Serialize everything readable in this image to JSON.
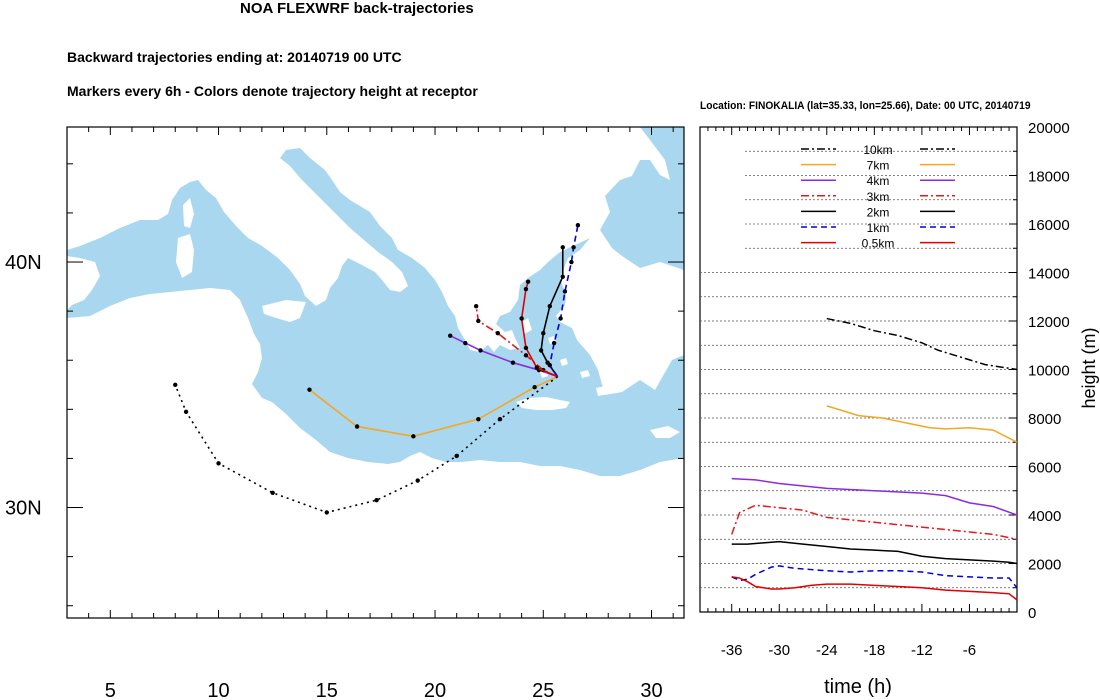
{
  "title": "NOA FLEXWRF back-trajectories",
  "subtitle_1": "Backward trajectories ending at: 20140719  00 UTC",
  "subtitle_2": "Markers every 6h - Colors denote trajectory height at receptor",
  "colors": {
    "sea": "#a9d7f0",
    "land": "#ffffff",
    "h10km": "#000000",
    "h7km": "#f5a623",
    "h4km": "#8a2be2",
    "h3km": "#e41a1c",
    "h2km": "#000000",
    "h1km": "#0000e0",
    "h05km": "#e00000"
  },
  "chart_data": [
    {
      "type": "line",
      "title": "",
      "xlabel": "",
      "ylabel": "",
      "xlim": [
        3,
        31.5
      ],
      "ylim": [
        25.5,
        45.5
      ],
      "x_ticks": [
        5,
        10,
        15,
        20,
        25,
        30
      ],
      "y_ticks": [
        {
          "value": 30,
          "label": "30N"
        },
        {
          "value": 40,
          "label": "40N"
        }
      ],
      "receptor": {
        "lon": 25.66,
        "lat": 35.33
      },
      "series": [
        {
          "key": "h10km",
          "style": "dashdot",
          "markers": [],
          "points": []
        },
        {
          "key": "h7km",
          "style": "solid",
          "points": [
            [
              25.66,
              35.33
            ],
            [
              24.6,
              34.9
            ],
            [
              22.0,
              33.6
            ],
            [
              19.0,
              32.9
            ],
            [
              16.4,
              33.3
            ],
            [
              14.2,
              34.8
            ]
          ]
        },
        {
          "key": "h4km",
          "style": "solid",
          "points": [
            [
              25.66,
              35.33
            ],
            [
              24.8,
              35.6
            ],
            [
              23.6,
              35.9
            ],
            [
              22.1,
              36.4
            ],
            [
              21.4,
              36.7
            ],
            [
              20.7,
              37.0
            ]
          ]
        },
        {
          "key": "h3km",
          "style": "dashdot",
          "points": [
            [
              25.66,
              35.33
            ],
            [
              25.0,
              35.6
            ],
            [
              24.2,
              36.2
            ],
            [
              22.9,
              37.1
            ],
            [
              22.0,
              37.6
            ],
            [
              21.9,
              38.2
            ]
          ]
        },
        {
          "key": "h2km",
          "style": "solid",
          "points": [
            [
              25.66,
              35.33
            ],
            [
              25.2,
              35.9
            ],
            [
              24.9,
              36.4
            ],
            [
              25.0,
              37.1
            ],
            [
              25.3,
              38.2
            ],
            [
              25.9,
              39.4
            ],
            [
              25.9,
              40.6
            ]
          ]
        },
        {
          "key": "h1km",
          "style": "dashed",
          "points": [
            [
              25.66,
              35.33
            ],
            [
              25.3,
              35.8
            ],
            [
              25.5,
              36.7
            ],
            [
              25.8,
              37.7
            ],
            [
              26.0,
              38.8
            ],
            [
              26.3,
              40.0
            ],
            [
              26.4,
              40.6
            ],
            [
              26.6,
              41.5
            ]
          ]
        },
        {
          "key": "h05km",
          "style": "solid",
          "points": [
            [
              25.66,
              35.33
            ],
            [
              24.7,
              35.7
            ],
            [
              24.2,
              36.5
            ],
            [
              24.0,
              37.7
            ],
            [
              24.2,
              38.9
            ],
            [
              24.3,
              39.2
            ]
          ]
        },
        {
          "key": "h05km_deep",
          "color": "#000000",
          "style": "dotted",
          "points": [
            [
              25.66,
              35.33
            ],
            [
              23.0,
              33.6
            ],
            [
              21.0,
              32.1
            ],
            [
              19.2,
              31.1
            ],
            [
              17.3,
              30.3
            ],
            [
              15.0,
              29.8
            ],
            [
              12.5,
              30.6
            ],
            [
              10.0,
              31.8
            ],
            [
              8.5,
              33.9
            ],
            [
              8.0,
              35.0
            ]
          ]
        }
      ]
    },
    {
      "type": "line",
      "location_label": "Location: FINOKALIA (lat=35.33,  lon=25.66), Date: 00 UTC, 20140719",
      "xlabel": "time (h)",
      "ylabel": "height (m)",
      "xlim": [
        -40,
        0
      ],
      "ylim": [
        0,
        20000
      ],
      "x_ticks": [
        -36,
        -30,
        -24,
        -18,
        -12,
        -6
      ],
      "y_ticks": [
        0,
        2000,
        4000,
        6000,
        8000,
        10000,
        12000,
        14000,
        16000,
        18000,
        20000
      ],
      "legend": [
        {
          "label": "10km",
          "key": "h10km",
          "style": "dashdot"
        },
        {
          "label": "7km",
          "key": "h7km",
          "style": "solid"
        },
        {
          "label": "4km",
          "key": "h4km",
          "style": "solid"
        },
        {
          "label": "3km",
          "key": "h3km",
          "style": "dashdot"
        },
        {
          "label": "2km",
          "key": "h2km",
          "style": "solid"
        },
        {
          "label": "1km",
          "key": "h1km",
          "style": "dashed"
        },
        {
          "label": "0.5km",
          "key": "h05km",
          "style": "solid"
        }
      ],
      "series": [
        {
          "key": "h10km",
          "style": "dashdot",
          "x": [
            -24,
            -21,
            -18,
            -15,
            -12,
            -10,
            -7,
            -4,
            0
          ],
          "y": [
            12100,
            11900,
            11600,
            11400,
            11100,
            10800,
            10500,
            10200,
            10000
          ]
        },
        {
          "key": "h7km",
          "style": "solid",
          "x": [
            -24,
            -22,
            -20,
            -17,
            -14,
            -11,
            -9,
            -6,
            -3,
            0
          ],
          "y": [
            8500,
            8300,
            8100,
            8000,
            7800,
            7600,
            7550,
            7600,
            7500,
            7000
          ]
        },
        {
          "key": "h4km",
          "style": "solid",
          "x": [
            -36,
            -33,
            -30,
            -24,
            -18,
            -12,
            -9,
            -6,
            -3,
            0
          ],
          "y": [
            5500,
            5450,
            5300,
            5100,
            5000,
            4900,
            4800,
            4500,
            4350,
            4000
          ]
        },
        {
          "key": "h3km",
          "style": "dashdot",
          "x": [
            -36,
            -35,
            -33,
            -30,
            -27,
            -24,
            -21,
            -18,
            -15,
            -12,
            -9,
            -6,
            -3,
            0
          ],
          "y": [
            3200,
            4100,
            4400,
            4300,
            4200,
            3900,
            3800,
            3700,
            3600,
            3500,
            3400,
            3300,
            3200,
            3000
          ]
        },
        {
          "key": "h2km",
          "style": "solid",
          "x": [
            -36,
            -34,
            -32,
            -30,
            -27,
            -24,
            -21,
            -18,
            -15,
            -12,
            -9,
            -6,
            -3,
            -1,
            0
          ],
          "y": [
            2800,
            2800,
            2850,
            2900,
            2800,
            2700,
            2600,
            2550,
            2500,
            2300,
            2200,
            2150,
            2100,
            2050,
            2000
          ]
        },
        {
          "key": "h1km",
          "style": "dashed",
          "x": [
            -36,
            -35,
            -34,
            -33,
            -31,
            -30,
            -28,
            -26,
            -24,
            -21,
            -18,
            -15,
            -12,
            -9,
            -6,
            -3,
            -1,
            0
          ],
          "y": [
            1450,
            1300,
            1350,
            1550,
            1850,
            1900,
            1800,
            1750,
            1700,
            1650,
            1700,
            1700,
            1650,
            1500,
            1450,
            1400,
            1400,
            1000
          ]
        },
        {
          "key": "h05km",
          "style": "solid",
          "x": [
            -36,
            -35,
            -34,
            -33,
            -31,
            -30,
            -28,
            -26,
            -24,
            -21,
            -18,
            -15,
            -12,
            -9,
            -6,
            -3,
            -1,
            0
          ],
          "y": [
            1450,
            1400,
            1250,
            1050,
            950,
            950,
            1000,
            1100,
            1150,
            1150,
            1100,
            1050,
            1000,
            900,
            850,
            800,
            750,
            500
          ]
        }
      ]
    }
  ]
}
